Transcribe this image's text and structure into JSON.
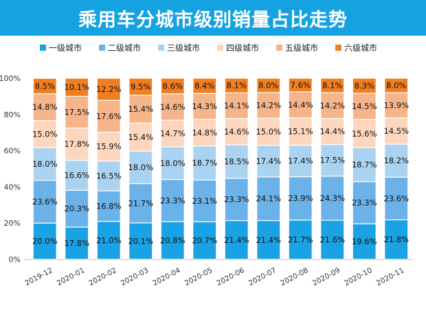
{
  "page_title": "乘用车分城市级别销量占比走势",
  "chart_data": {
    "type": "bar",
    "stacked": true,
    "orientation": "vertical",
    "percent_stacked": true,
    "categories": [
      "2019-12",
      "2020-01",
      "2020-02",
      "2020-03",
      "2020-04",
      "2020-05",
      "2020-06",
      "2020-07",
      "2020-08",
      "2020-09",
      "2020-10",
      "2020-11"
    ],
    "series": [
      {
        "name": "一级城市",
        "color": "#1aa2e4",
        "values": [
          20.0,
          17.8,
          21.0,
          20.1,
          20.8,
          20.7,
          21.4,
          21.4,
          21.7,
          21.6,
          19.6,
          21.8
        ],
        "labels": [
          "20.0%",
          "17.8%",
          "21.0%",
          "20.1%",
          "20.8%",
          "20.7%",
          "21.4%",
          "21.4%",
          "21.7%",
          "21.6%",
          "19.6%",
          "21.8%"
        ]
      },
      {
        "name": "二级城市",
        "color": "#6ab2e8",
        "values": [
          23.6,
          20.3,
          16.8,
          21.7,
          23.3,
          23.1,
          23.3,
          24.1,
          23.9,
          24.3,
          23.3,
          23.6
        ],
        "labels": [
          "23.6%",
          "20.3%",
          "16.8%",
          "21.7%",
          "23.3%",
          "23.1%",
          "23.3%",
          "24.1%",
          "23.9%",
          "24.3%",
          "23.3%",
          "23.6%"
        ]
      },
      {
        "name": "三级城市",
        "color": "#a9d3f1",
        "values": [
          18.0,
          16.6,
          16.5,
          18.0,
          18.0,
          18.7,
          18.5,
          17.4,
          17.4,
          17.5,
          18.7,
          18.2
        ],
        "labels": [
          "18.0%",
          "16.6%",
          "16.5%",
          "18.0%",
          "18.0%",
          "18.7%",
          "18.5%",
          "17.4%",
          "17.4%",
          "17.5%",
          "18.7%",
          "18.2%"
        ]
      },
      {
        "name": "四级城市",
        "color": "#fcd6bd",
        "values": [
          15.0,
          17.8,
          15.9,
          15.4,
          14.7,
          14.8,
          14.6,
          15.0,
          15.1,
          14.4,
          15.6,
          14.5
        ],
        "labels": [
          "15.0%",
          "17.8%",
          "15.9%",
          "15.4%",
          "14.7%",
          "14.8%",
          "14.6%",
          "15.0%",
          "15.1%",
          "14.4%",
          "15.6%",
          "14.5%"
        ]
      },
      {
        "name": "五级城市",
        "color": "#f6b48a",
        "values": [
          14.8,
          17.5,
          17.6,
          15.4,
          14.6,
          14.3,
          14.1,
          14.2,
          14.4,
          14.2,
          14.5,
          13.9
        ],
        "labels": [
          "14.8%",
          "17.5%",
          "17.6%",
          "15.4%",
          "14.6%",
          "14.3%",
          "14.1%",
          "14.2%",
          "14.4%",
          "14.2%",
          "14.5%",
          "13.9%"
        ]
      },
      {
        "name": "六级城市",
        "color": "#f07f22",
        "values": [
          8.5,
          10.1,
          12.2,
          9.5,
          8.6,
          8.4,
          8.1,
          8.0,
          7.6,
          8.1,
          8.3,
          8.0
        ],
        "labels": [
          "8.5%",
          "10.1%",
          "12.2%",
          "9.5%",
          "8.6%",
          "8.4%",
          "8.1%",
          "8.0%",
          "7.6%",
          "8.1%",
          "8.3%",
          "8.0%"
        ]
      }
    ],
    "y_ticks": [
      "0%",
      "20%",
      "40%",
      "60%",
      "80%",
      "100%"
    ],
    "ylim": [
      0,
      100
    ],
    "grid": false,
    "legend_position": "top"
  }
}
